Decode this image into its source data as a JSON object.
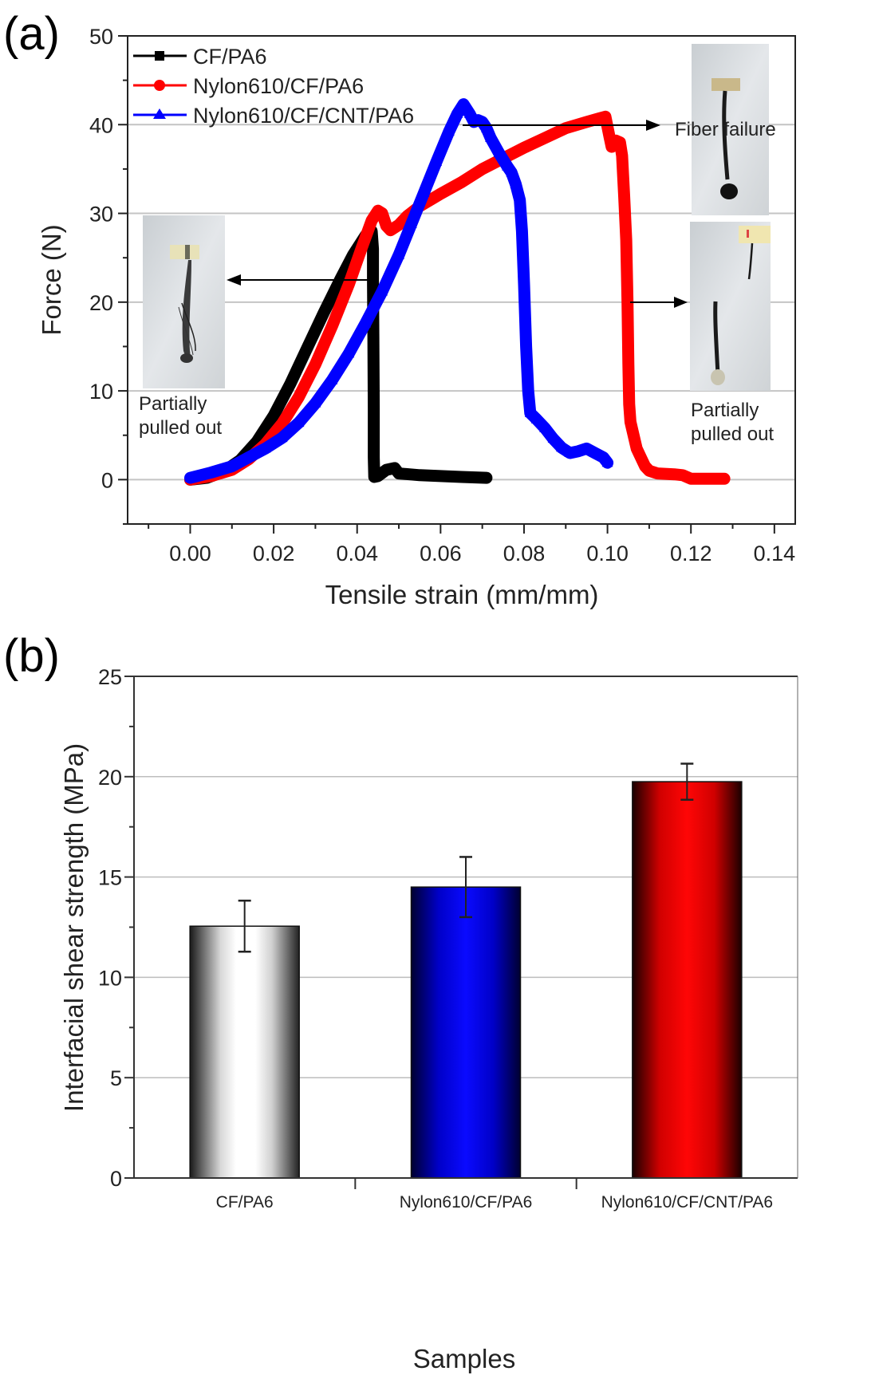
{
  "chart_data": [
    {
      "panel": "(a)",
      "type": "line",
      "title": "",
      "xlabel": "Tensile strain (mm/mm)",
      "ylabel": "Force (N)",
      "xlim": [
        -0.015,
        0.145
      ],
      "ylim": [
        -5,
        50
      ],
      "xticks": [
        "0.00",
        "0.02",
        "0.04",
        "0.06",
        "0.08",
        "0.10",
        "0.12",
        "0.14"
      ],
      "yticks": [
        "0",
        "10",
        "20",
        "30",
        "40",
        "50"
      ],
      "grid": "horizontal",
      "legend_position": "top-left",
      "series": [
        {
          "name": "CF/PA6",
          "color": "#000000",
          "marker": "square",
          "points": [
            [
              0.0,
              0.0
            ],
            [
              0.004,
              0.2
            ],
            [
              0.008,
              0.9
            ],
            [
              0.012,
              2.2
            ],
            [
              0.016,
              4.3
            ],
            [
              0.02,
              7.2
            ],
            [
              0.024,
              10.8
            ],
            [
              0.028,
              14.8
            ],
            [
              0.032,
              18.8
            ],
            [
              0.036,
              22.6
            ],
            [
              0.039,
              25.3
            ],
            [
              0.042,
              27.5
            ],
            [
              0.0435,
              28.0
            ],
            [
              0.0438,
              26.0
            ],
            [
              0.0438,
              22.5
            ],
            [
              0.0439,
              16.0
            ],
            [
              0.044,
              8.0
            ],
            [
              0.044,
              2.5
            ],
            [
              0.0441,
              0.3
            ],
            [
              0.045,
              0.4
            ],
            [
              0.047,
              1.1
            ],
            [
              0.049,
              1.3
            ],
            [
              0.05,
              0.7
            ],
            [
              0.055,
              0.5
            ],
            [
              0.06,
              0.4
            ],
            [
              0.065,
              0.3
            ],
            [
              0.071,
              0.2
            ]
          ]
        },
        {
          "name": "Nylon610/CF/PA6",
          "color": "#ff0000",
          "marker": "circle",
          "points": [
            [
              0.0,
              0.0
            ],
            [
              0.005,
              0.4
            ],
            [
              0.01,
              1.1
            ],
            [
              0.014,
              2.3
            ],
            [
              0.018,
              4.0
            ],
            [
              0.022,
              6.3
            ],
            [
              0.026,
              9.3
            ],
            [
              0.03,
              13.0
            ],
            [
              0.034,
              17.3
            ],
            [
              0.038,
              22.0
            ],
            [
              0.041,
              26.0
            ],
            [
              0.0435,
              29.2
            ],
            [
              0.045,
              30.3
            ],
            [
              0.046,
              30.0
            ],
            [
              0.047,
              28.6
            ],
            [
              0.048,
              28.1
            ],
            [
              0.05,
              28.7
            ],
            [
              0.052,
              29.7
            ],
            [
              0.055,
              30.8
            ],
            [
              0.06,
              32.2
            ],
            [
              0.065,
              33.5
            ],
            [
              0.07,
              35.0
            ],
            [
              0.075,
              36.2
            ],
            [
              0.08,
              37.4
            ],
            [
              0.085,
              38.5
            ],
            [
              0.09,
              39.6
            ],
            [
              0.095,
              40.3
            ],
            [
              0.098,
              40.7
            ],
            [
              0.0995,
              40.9
            ],
            [
              0.1005,
              38.6
            ],
            [
              0.101,
              37.5
            ],
            [
              0.102,
              38.2
            ],
            [
              0.103,
              38.0
            ],
            [
              0.1035,
              36.5
            ],
            [
              0.104,
              32.0
            ],
            [
              0.1045,
              27.0
            ],
            [
              0.1048,
              20.0
            ],
            [
              0.105,
              13.0
            ],
            [
              0.1052,
              8.5
            ],
            [
              0.1055,
              6.5
            ],
            [
              0.106,
              5.5
            ],
            [
              0.107,
              3.5
            ],
            [
              0.108,
              2.5
            ],
            [
              0.109,
              1.5
            ],
            [
              0.11,
              1.0
            ],
            [
              0.112,
              0.7
            ],
            [
              0.116,
              0.6
            ],
            [
              0.118,
              0.5
            ],
            [
              0.12,
              0.1
            ],
            [
              0.124,
              0.1
            ],
            [
              0.128,
              0.1
            ]
          ]
        },
        {
          "name": "Nylon610/CF/CNT/PA6",
          "color": "#0000ff",
          "marker": "triangle",
          "points": [
            [
              0.0,
              0.2
            ],
            [
              0.005,
              0.8
            ],
            [
              0.01,
              1.5
            ],
            [
              0.014,
              2.5
            ],
            [
              0.018,
              3.5
            ],
            [
              0.022,
              4.7
            ],
            [
              0.026,
              6.4
            ],
            [
              0.03,
              8.6
            ],
            [
              0.034,
              11.2
            ],
            [
              0.038,
              14.2
            ],
            [
              0.042,
              17.6
            ],
            [
              0.046,
              21.2
            ],
            [
              0.05,
              25.3
            ],
            [
              0.053,
              28.8
            ],
            [
              0.056,
              32.3
            ],
            [
              0.059,
              35.8
            ],
            [
              0.062,
              39.2
            ],
            [
              0.064,
              41.2
            ],
            [
              0.0655,
              42.3
            ],
            [
              0.067,
              41.2
            ],
            [
              0.068,
              40.3
            ],
            [
              0.069,
              40.5
            ],
            [
              0.07,
              40.3
            ],
            [
              0.071,
              39.6
            ],
            [
              0.072,
              38.5
            ],
            [
              0.074,
              36.8
            ],
            [
              0.076,
              35.3
            ],
            [
              0.077,
              34.6
            ],
            [
              0.078,
              33.3
            ],
            [
              0.079,
              31.5
            ],
            [
              0.0795,
              28.0
            ],
            [
              0.08,
              22.0
            ],
            [
              0.0805,
              15.0
            ],
            [
              0.081,
              10.0
            ],
            [
              0.0815,
              7.5
            ],
            [
              0.083,
              6.8
            ],
            [
              0.085,
              5.8
            ],
            [
              0.087,
              4.6
            ],
            [
              0.089,
              3.6
            ],
            [
              0.091,
              3.0
            ],
            [
              0.093,
              3.2
            ],
            [
              0.095,
              3.5
            ],
            [
              0.097,
              3.0
            ],
            [
              0.099,
              2.5
            ],
            [
              0.1,
              1.9
            ]
          ]
        }
      ],
      "annotations": [
        {
          "text": "Fiber failure",
          "target": "Nylon610/CF/CNT/PA6 peak ≈ 40 N"
        },
        {
          "text": "Partially pulled out",
          "target": "CF/PA6 failure ≈ 22.5 N",
          "side": "left"
        },
        {
          "text": "Partially pulled out",
          "target": "Nylon610/CF/PA6 drop ≈ 20 N",
          "side": "right"
        }
      ]
    },
    {
      "panel": "(b)",
      "type": "bar",
      "title": "",
      "xlabel": "Samples",
      "ylabel": "Interfacial shear strength (MPa)",
      "ylim": [
        0,
        25
      ],
      "yticks": [
        "0",
        "5",
        "10",
        "15",
        "20",
        "25"
      ],
      "grid": "horizontal",
      "categories": [
        "CF/PA6",
        "Nylon610/CF/PA6",
        "Nylon610/CF/CNT/PA6"
      ],
      "values": [
        12.55,
        14.5,
        19.75
      ],
      "errors": [
        1.27,
        1.5,
        0.9
      ],
      "colors": [
        "#ffffff",
        "#0000ff",
        "#ff0000"
      ]
    }
  ],
  "figure": {
    "panel_a_label": "(a)",
    "panel_b_label": "(b)",
    "annotation_fiber_failure": "Fiber failure",
    "annotation_pulled_left_line1": "Partially",
    "annotation_pulled_left_line2": "pulled out",
    "annotation_pulled_right_line1": "Partially",
    "annotation_pulled_right_line2": "pulled out"
  }
}
